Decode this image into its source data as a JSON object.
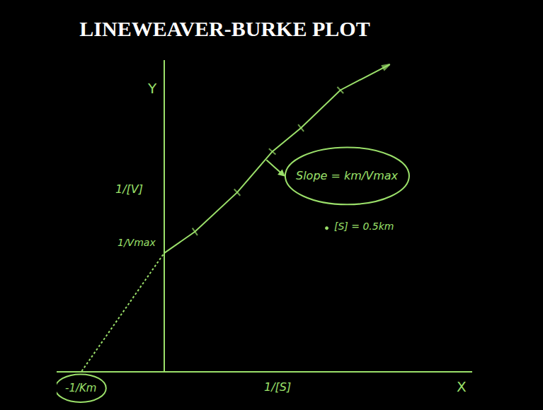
{
  "chart_data": {
    "type": "line",
    "title": "LINEWEAVER-BURKE PLOT",
    "color": "#9be06a",
    "xlim": [
      -1.5,
      4.3
    ],
    "ylim": [
      0,
      4.35
    ],
    "xticks": [],
    "yticks": [],
    "tick_labels": false,
    "grid": false,
    "series": [
      {
        "x": [
          0,
          0.43,
          1.02,
          1.51,
          1.91,
          2.46,
          3.15
        ],
        "values": [
          1.65,
          1.95,
          2.5,
          3.07,
          3.4,
          3.93,
          4.29
        ],
        "line_style": "solid",
        "marker": "tick"
      },
      {
        "x": [
          -1.15,
          0
        ],
        "values": [
          0,
          1.65
        ],
        "line_style": "dot"
      }
    ],
    "annotations": {
      "y_axis": "Y",
      "x_axis": "X",
      "y_title": "1/[V]",
      "x_title": "1/[S]",
      "y_intercept": "1/Vmax",
      "x_intercept": "-1/Km",
      "slope": "Slope = km/Vmax",
      "note": "[S] = 0.5km"
    }
  }
}
